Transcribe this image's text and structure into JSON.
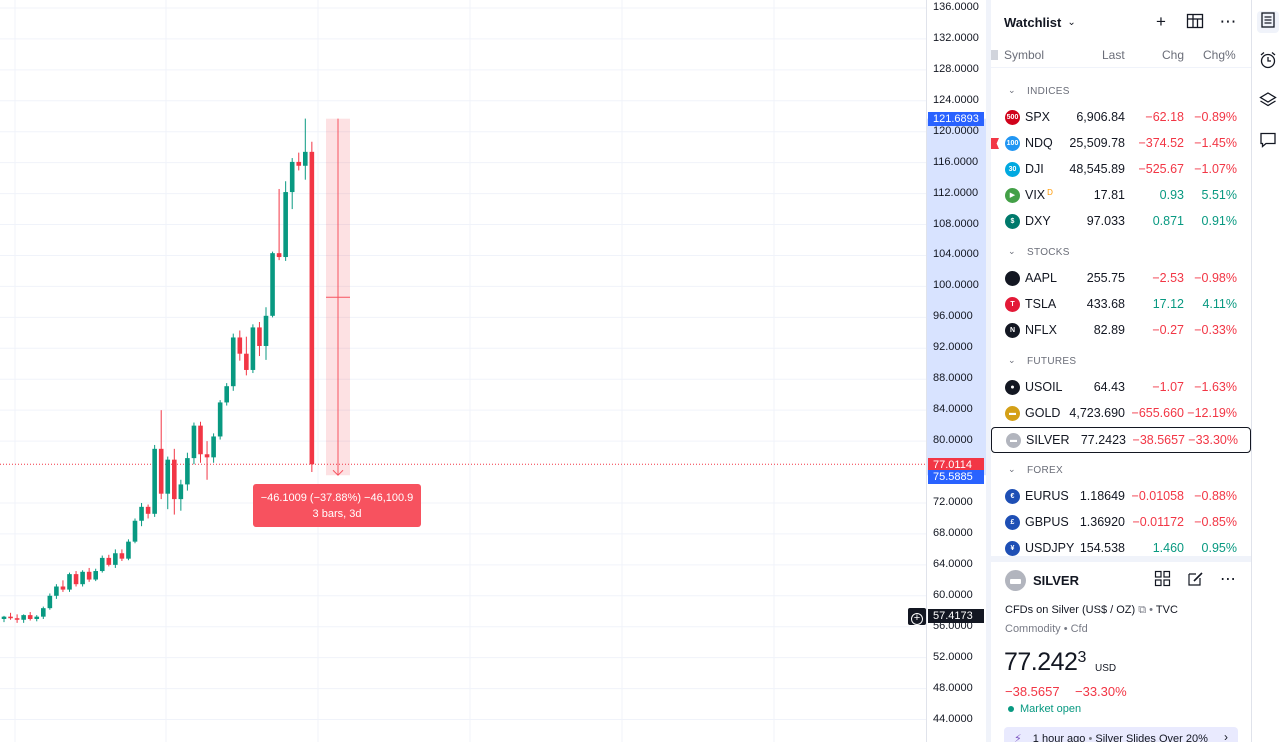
{
  "chart_data": {
    "type": "candlestick",
    "symbol": "SILVER",
    "y_ticks": [
      "136.0000",
      "132.0000",
      "128.0000",
      "124.0000",
      "120.0000",
      "116.0000",
      "112.0000",
      "108.0000",
      "104.0000",
      "100.0000",
      "96.0000",
      "92.0000",
      "88.0000",
      "84.0000",
      "80.0000",
      "72.0000",
      "68.0000",
      "64.0000",
      "60.0000",
      "56.0000",
      "52.0000",
      "48.0000",
      "44.0000"
    ],
    "y_tick_values": [
      136,
      132,
      128,
      124,
      120,
      116,
      112,
      108,
      104,
      100,
      96,
      92,
      88,
      84,
      80,
      72,
      68,
      64,
      60,
      56,
      52,
      48,
      44
    ],
    "ylim": [
      43,
      137
    ],
    "candles": [
      [
        57.0,
        57.4,
        56.6,
        57.3
      ],
      [
        57.3,
        57.8,
        56.9,
        57.1
      ],
      [
        57.1,
        57.6,
        56.5,
        56.9
      ],
      [
        56.9,
        57.6,
        56.5,
        57.5
      ],
      [
        57.5,
        57.9,
        56.8,
        57.0
      ],
      [
        57.0,
        57.5,
        56.7,
        57.3
      ],
      [
        57.3,
        58.6,
        57.0,
        58.4
      ],
      [
        58.4,
        60.3,
        58.2,
        60.0
      ],
      [
        60.0,
        61.5,
        59.6,
        61.2
      ],
      [
        61.2,
        62.0,
        60.5,
        60.8
      ],
      [
        60.8,
        63.0,
        60.5,
        62.8
      ],
      [
        62.8,
        63.2,
        61.2,
        61.5
      ],
      [
        61.5,
        63.3,
        61.2,
        63.1
      ],
      [
        63.1,
        63.6,
        61.8,
        62.1
      ],
      [
        62.1,
        63.5,
        61.9,
        63.2
      ],
      [
        63.2,
        65.2,
        63.0,
        64.9
      ],
      [
        64.9,
        65.3,
        63.8,
        64.0
      ],
      [
        64.0,
        66.0,
        63.6,
        65.5
      ],
      [
        65.5,
        66.0,
        64.5,
        64.8
      ],
      [
        64.8,
        67.3,
        64.6,
        67.0
      ],
      [
        67.0,
        70.0,
        66.8,
        69.7
      ],
      [
        69.7,
        72.0,
        69.0,
        71.5
      ],
      [
        71.5,
        71.8,
        70.0,
        70.6
      ],
      [
        70.6,
        79.5,
        70.2,
        79.0
      ],
      [
        79.0,
        84.0,
        72.5,
        73.2
      ],
      [
        73.2,
        78.0,
        71.2,
        77.6
      ],
      [
        77.6,
        79.0,
        70.5,
        72.5
      ],
      [
        72.5,
        75.0,
        71.0,
        74.4
      ],
      [
        74.4,
        78.5,
        73.6,
        77.8
      ],
      [
        77.8,
        82.4,
        77.0,
        82.0
      ],
      [
        82.0,
        82.5,
        77.2,
        78.3
      ],
      [
        78.3,
        80.0,
        75.0,
        77.9
      ],
      [
        77.9,
        81.0,
        77.2,
        80.6
      ],
      [
        80.6,
        85.3,
        80.2,
        85.0
      ],
      [
        85.0,
        87.5,
        84.6,
        87.1
      ],
      [
        87.1,
        93.9,
        86.5,
        93.4
      ],
      [
        93.4,
        94.3,
        90.4,
        91.3
      ],
      [
        91.3,
        93.5,
        88.5,
        89.2
      ],
      [
        89.2,
        95.1,
        88.8,
        94.7
      ],
      [
        94.7,
        95.4,
        91.0,
        92.3
      ],
      [
        92.3,
        97.3,
        90.5,
        96.2
      ],
      [
        96.2,
        104.5,
        96.0,
        104.3
      ],
      [
        104.3,
        112.6,
        103.4,
        103.8
      ],
      [
        103.8,
        113.6,
        103.3,
        112.2
      ],
      [
        112.2,
        116.6,
        110.0,
        116.1
      ],
      [
        116.1,
        117.3,
        115.0,
        115.6
      ],
      [
        115.6,
        121.7,
        113.8,
        117.4
      ],
      [
        117.4,
        118.7,
        76.0,
        77.0
      ]
    ]
  },
  "measure": {
    "line1": "−46.1009 (−37.88%) −46,100.9",
    "line2": "3 bars, 3d"
  },
  "price_tags": {
    "top": "121.6893",
    "current": "77.0114",
    "low": "75.5885",
    "crosshair": "57.4173"
  },
  "watchlist": {
    "title": "Watchlist",
    "columns": {
      "symbol": "Symbol",
      "last": "Last",
      "chg": "Chg",
      "pct": "Chg%"
    },
    "sections": [
      {
        "label": "INDICES"
      },
      {
        "label": "STOCKS"
      },
      {
        "label": "FUTURES"
      },
      {
        "label": "FOREX"
      }
    ],
    "rows": [
      {
        "symbol": "SPX",
        "last": "6,906.84",
        "chg": "−62.18",
        "pct": "−0.89%",
        "dir": "down",
        "logo_text": "500",
        "logo_color": "#d0021b"
      },
      {
        "symbol": "NDQ",
        "last": "25,509.78",
        "chg": "−374.52",
        "pct": "−1.45%",
        "dir": "down",
        "logo_text": "100",
        "logo_color": "#2196f3"
      },
      {
        "symbol": "DJI",
        "last": "48,545.89",
        "chg": "−525.67",
        "pct": "−1.07%",
        "dir": "down",
        "logo_text": "30",
        "logo_color": "#00a9e0"
      },
      {
        "symbol": "VIX",
        "sup": "D",
        "last": "17.81",
        "chg": "0.93",
        "pct": "5.51%",
        "dir": "up",
        "logo_text": "▶",
        "logo_color": "#43a047"
      },
      {
        "symbol": "DXY",
        "last": "97.033",
        "chg": "0.871",
        "pct": "0.91%",
        "dir": "up",
        "logo_text": "$",
        "logo_color": "#00796b"
      },
      {
        "symbol": "AAPL",
        "last": "255.75",
        "chg": "−2.53",
        "pct": "−0.98%",
        "dir": "down",
        "logo_text": "",
        "logo_color": "#131722"
      },
      {
        "symbol": "TSLA",
        "last": "433.68",
        "chg": "17.12",
        "pct": "4.11%",
        "dir": "up",
        "logo_text": "T",
        "logo_color": "#e31937"
      },
      {
        "symbol": "NFLX",
        "last": "82.89",
        "chg": "−0.27",
        "pct": "−0.33%",
        "dir": "down",
        "logo_text": "N",
        "logo_color": "#131722"
      },
      {
        "symbol": "USOIL",
        "last": "64.43",
        "chg": "−1.07",
        "pct": "−1.63%",
        "dir": "down",
        "logo_text": "●",
        "logo_color": "#131722"
      },
      {
        "symbol": "GOLD",
        "last": "4,723.690",
        "chg": "−655.660",
        "pct": "−12.19%",
        "dir": "down",
        "logo_text": "▬",
        "logo_color": "#d4a017"
      },
      {
        "symbol": "SILVER",
        "last": "77.2423",
        "chg": "−38.5657",
        "pct": "−33.30%",
        "dir": "down",
        "logo_text": "▬",
        "logo_color": "#b2b5be"
      },
      {
        "symbol": "EURUS",
        "last": "1.18649",
        "chg": "−0.01058",
        "pct": "−0.88%",
        "dir": "down",
        "logo_text": "€",
        "logo_color": "#1e4fb5"
      },
      {
        "symbol": "GBPUS",
        "last": "1.36920",
        "chg": "−0.01172",
        "pct": "−0.85%",
        "dir": "down",
        "logo_text": "£",
        "logo_color": "#1e4fb5"
      },
      {
        "symbol": "USDJPY",
        "last": "154.538",
        "chg": "1.460",
        "pct": "0.95%",
        "dir": "up",
        "logo_text": "¥",
        "logo_color": "#1e4fb5"
      }
    ]
  },
  "details": {
    "symbol": "SILVER",
    "name": "CFDs on Silver (US$ / OZ)",
    "source": "TVC",
    "type": "Commodity",
    "subtype": "Cfd",
    "price_main": "77.242",
    "price_sup": "3",
    "currency": "USD",
    "change": "−38.5657",
    "change_pct": "−33.30%",
    "market_status": "Market open",
    "news_time": "1 hour ago",
    "news_title": "Silver Slides Over 20%"
  },
  "icons": {
    "add": "plus-icon",
    "layout": "table-layout-icon",
    "more": "more-icon",
    "watchlist": "watchlist-icon",
    "alarm": "alarm-clock-icon",
    "layers": "layers-icon",
    "chat": "chat-icon"
  },
  "colors": {
    "up": "#089981",
    "down": "#f23645",
    "accent": "#2962ff"
  }
}
